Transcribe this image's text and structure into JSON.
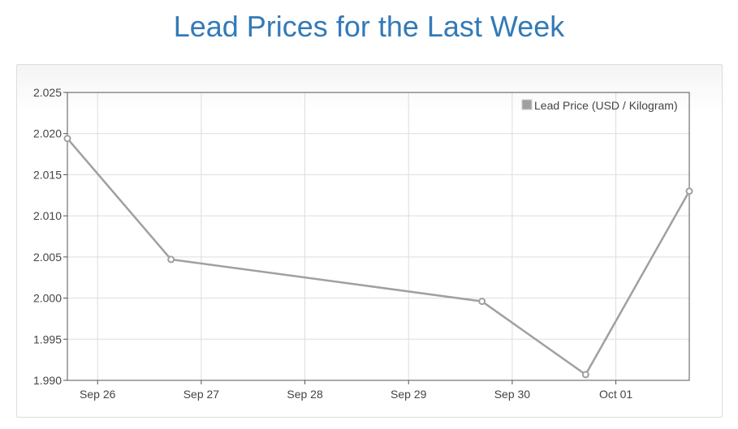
{
  "page": {
    "title": "Lead Prices for the Last Week"
  },
  "chart_data": {
    "type": "line",
    "title": "Lead Prices for the Last Week",
    "xlabel": "",
    "ylabel": "",
    "x_ticks": [
      "Sep 26",
      "Sep 27",
      "Sep 28",
      "Sep 29",
      "Sep 30",
      "Oct 01"
    ],
    "y_ticks": [
      "1.990",
      "1.995",
      "2.000",
      "2.005",
      "2.010",
      "2.015",
      "2.020",
      "2.025"
    ],
    "ylim": [
      1.99,
      2.025
    ],
    "xlim": [
      "2023-09-25 17:00",
      "2023-10-01 17:00"
    ],
    "grid": true,
    "legend_position": "top-right",
    "series": [
      {
        "name": "Lead Price (USD / Kilogram)",
        "color": "#a0a0a0",
        "points": [
          {
            "x": "2023-09-25 17:00",
            "y": 2.0194
          },
          {
            "x": "2023-09-26 17:00",
            "y": 2.0047
          },
          {
            "x": "2023-09-29 17:00",
            "y": 1.9996
          },
          {
            "x": "2023-09-30 17:00",
            "y": 1.9907
          },
          {
            "x": "2023-10-01 17:00",
            "y": 2.013
          }
        ]
      }
    ]
  }
}
